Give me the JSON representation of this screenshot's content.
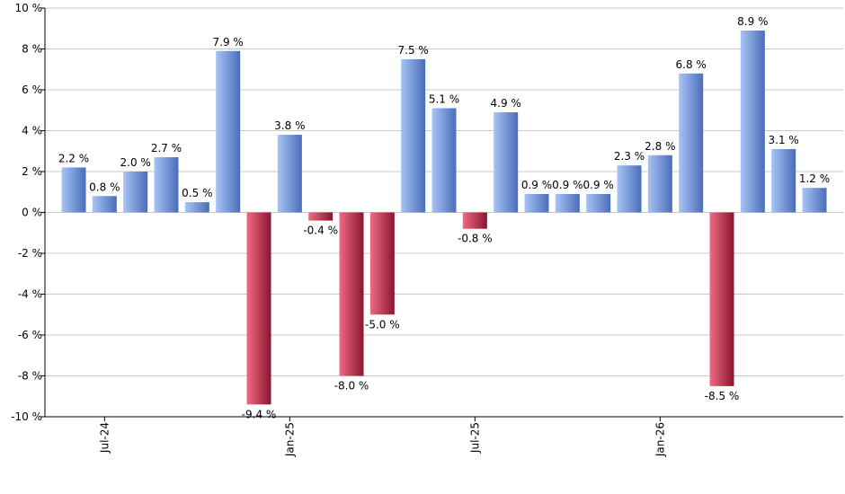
{
  "chart_data": {
    "type": "bar",
    "title": "",
    "xlabel": "",
    "ylabel": "",
    "ylim": [
      -10,
      10
    ],
    "y_ticks": [
      10,
      8,
      6,
      4,
      2,
      0,
      -2,
      -4,
      -6,
      -8,
      -10
    ],
    "y_tick_labels": [
      "10 %",
      "8 %",
      "6 %",
      "4 %",
      "2 %",
      "0 %",
      "-2 %",
      "-4 %",
      "-6 %",
      "-8 %",
      "-10 %"
    ],
    "grid": true,
    "legend": "none",
    "x_tick_labels": [
      {
        "index": 1,
        "label": "Jul-24"
      },
      {
        "index": 7,
        "label": "Jan-25"
      },
      {
        "index": 13,
        "label": "Jul-25"
      },
      {
        "index": 19,
        "label": "Jan-26"
      }
    ],
    "values": [
      2.2,
      0.8,
      2.0,
      2.7,
      0.5,
      7.9,
      -9.4,
      3.8,
      -0.4,
      -8.0,
      -5.0,
      7.5,
      5.1,
      -0.8,
      4.9,
      0.9,
      0.9,
      0.9,
      2.3,
      2.8,
      6.8,
      -8.5,
      8.9,
      3.1,
      1.2
    ],
    "data_labels": [
      "2.2 %",
      "0.8 %",
      "2.0 %",
      "2.7 %",
      "0.5 %",
      "7.9 %",
      "-9.4 %",
      "3.8 %",
      "-0.4 %",
      "-8.0 %",
      "-5.0 %",
      "7.5 %",
      "5.1 %",
      "-0.8 %",
      "4.9 %",
      "0.9 %",
      "0.9 %",
      "0.9 %",
      "2.3 %",
      "2.8 %",
      "6.8 %",
      "-8.5 %",
      "8.9 %",
      "3.1 %",
      "1.2 %"
    ],
    "colors": {
      "positive_light": "#a8c4f5",
      "positive_dark": "#4a6db8",
      "negative_light": "#f06a82",
      "negative_dark": "#8a1530",
      "grid": "#c8c8c8",
      "axis": "#000000"
    }
  }
}
